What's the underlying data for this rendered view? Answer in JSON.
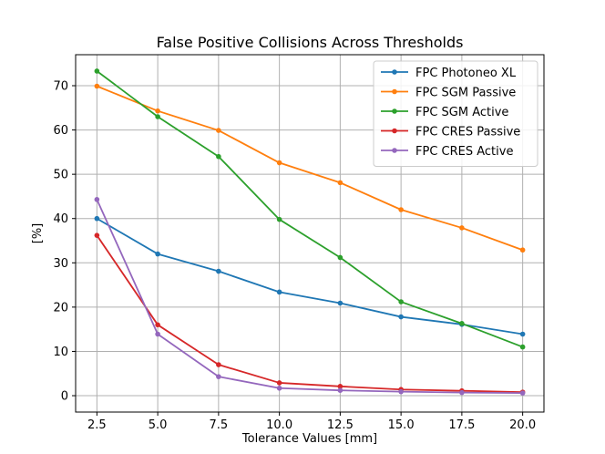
{
  "chart_data": {
    "type": "line",
    "title": "False Positive Collisions Across Thresholds",
    "xlabel": "Tolerance Values [mm]",
    "ylabel": "[%]",
    "x": [
      2.5,
      5.0,
      7.5,
      10.0,
      12.5,
      15.0,
      17.5,
      20.0
    ],
    "x_tick_labels": [
      "2.5",
      "5.0",
      "7.5",
      "10.0",
      "12.5",
      "15.0",
      "17.5",
      "20.0"
    ],
    "y_ticks": [
      0,
      10,
      20,
      30,
      40,
      50,
      60,
      70
    ],
    "y_tick_labels": [
      "0",
      "10",
      "20",
      "30",
      "40",
      "50",
      "60",
      "70"
    ],
    "xlim": [
      1.625,
      20.875
    ],
    "ylim": [
      -3.7,
      77.0
    ],
    "grid": true,
    "legend_position": "top-right",
    "series": [
      {
        "name": "FPC Photoneo XL",
        "color": "#1f77b4",
        "values": [
          40.0,
          32.0,
          28.1,
          23.4,
          20.9,
          17.8,
          16.1,
          13.9
        ]
      },
      {
        "name": "FPC SGM Passive",
        "color": "#ff7f0e",
        "values": [
          69.9,
          64.3,
          59.9,
          52.6,
          48.1,
          42.0,
          37.9,
          32.9
        ]
      },
      {
        "name": "FPC SGM Active",
        "color": "#2ca02c",
        "values": [
          73.3,
          63.0,
          54.0,
          39.8,
          31.2,
          21.2,
          16.3,
          11.0
        ]
      },
      {
        "name": "FPC CRES Passive",
        "color": "#d62728",
        "values": [
          36.2,
          16.0,
          7.0,
          2.9,
          2.1,
          1.4,
          1.1,
          0.8
        ]
      },
      {
        "name": "FPC CRES Active",
        "color": "#9467bd",
        "values": [
          44.3,
          13.9,
          4.3,
          1.7,
          1.2,
          0.9,
          0.7,
          0.6
        ]
      }
    ]
  }
}
